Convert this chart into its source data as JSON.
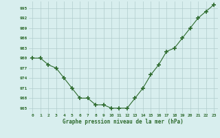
{
  "x": [
    0,
    1,
    2,
    3,
    4,
    5,
    6,
    7,
    8,
    9,
    10,
    11,
    12,
    13,
    14,
    15,
    16,
    17,
    18,
    19,
    20,
    21,
    22,
    23
  ],
  "y": [
    980,
    980,
    978,
    977,
    974,
    971,
    968,
    968,
    966,
    966,
    965,
    965,
    965,
    968,
    971,
    975,
    978,
    982,
    983,
    986,
    989,
    992,
    994,
    996
  ],
  "line_color": "#2d6a2d",
  "marker_color": "#2d6a2d",
  "bg_color": "#d8eeee",
  "grid_color": "#b0cccc",
  "xlabel": "Graphe pression niveau de la mer (hPa)",
  "ylabel_ticks": [
    965,
    968,
    971,
    974,
    977,
    980,
    983,
    986,
    989,
    992,
    995
  ],
  "xlim": [
    -0.5,
    23.5
  ],
  "ylim": [
    963.5,
    997
  ],
  "xtick_labels": [
    "0",
    "1",
    "2",
    "3",
    "4",
    "5",
    "6",
    "7",
    "8",
    "9",
    "10",
    "11",
    "12",
    "13",
    "14",
    "15",
    "16",
    "17",
    "18",
    "19",
    "20",
    "21",
    "22",
    "23"
  ]
}
